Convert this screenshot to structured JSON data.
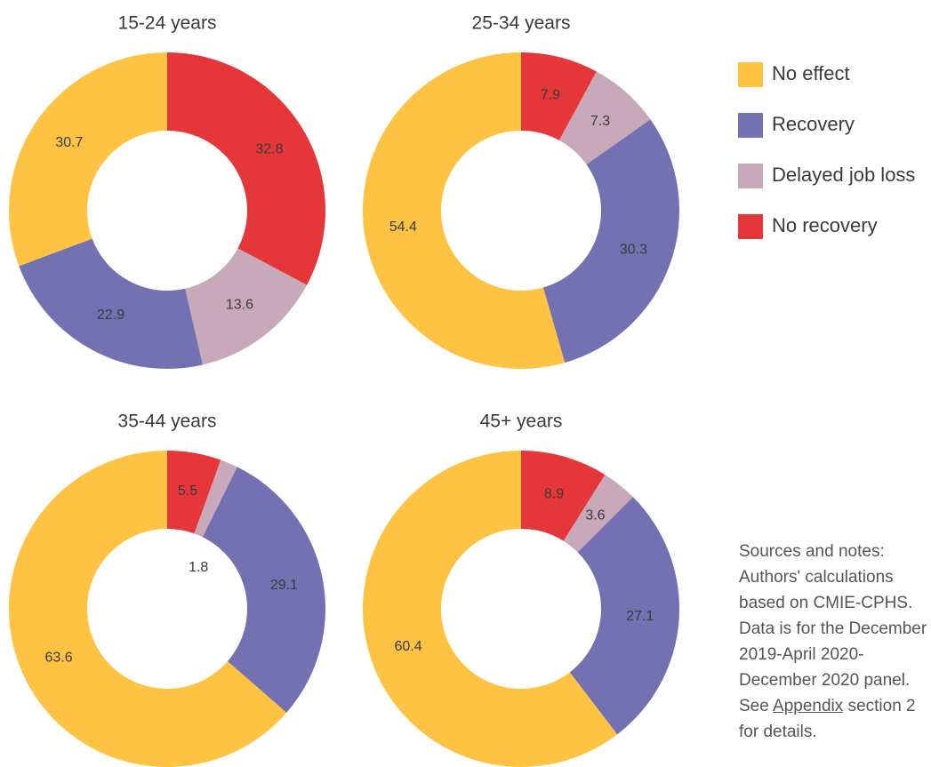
{
  "chart_data": [
    {
      "type": "pie",
      "title": "15-24 years",
      "donut": true,
      "categories": [
        "No recovery",
        "Delayed job loss",
        "Recovery",
        "No effect"
      ],
      "colors": [
        "#e5363a",
        "#c8a9b9",
        "#7471b2",
        "#fec343"
      ],
      "values": [
        32.8,
        13.6,
        22.9,
        30.7
      ]
    },
    {
      "type": "pie",
      "title": "25-34 years",
      "donut": true,
      "categories": [
        "No recovery",
        "Delayed job loss",
        "Recovery",
        "No effect"
      ],
      "colors": [
        "#e5363a",
        "#c8a9b9",
        "#7471b2",
        "#fec343"
      ],
      "values": [
        7.9,
        7.3,
        30.3,
        54.4
      ]
    },
    {
      "type": "pie",
      "title": "35-44 years",
      "donut": true,
      "categories": [
        "No recovery",
        "Delayed job loss",
        "Recovery",
        "No effect"
      ],
      "colors": [
        "#e5363a",
        "#c8a9b9",
        "#7471b2",
        "#fec343"
      ],
      "values": [
        5.5,
        1.8,
        29.1,
        63.6
      ]
    },
    {
      "type": "pie",
      "title": "45+ years",
      "donut": true,
      "categories": [
        "No recovery",
        "Delayed job loss",
        "Recovery",
        "No effect"
      ],
      "colors": [
        "#e5363a",
        "#c8a9b9",
        "#7471b2",
        "#fec343"
      ],
      "values": [
        8.9,
        3.6,
        27.1,
        60.4
      ]
    }
  ],
  "notes": {
    "text": "Sources and notes: Authors' calculations based on CMIE-CPHS. Data is for the December 2019-April 2020-December 2020 panel. See",
    "link": "Appendix",
    "after": "section 2 for details."
  }
}
